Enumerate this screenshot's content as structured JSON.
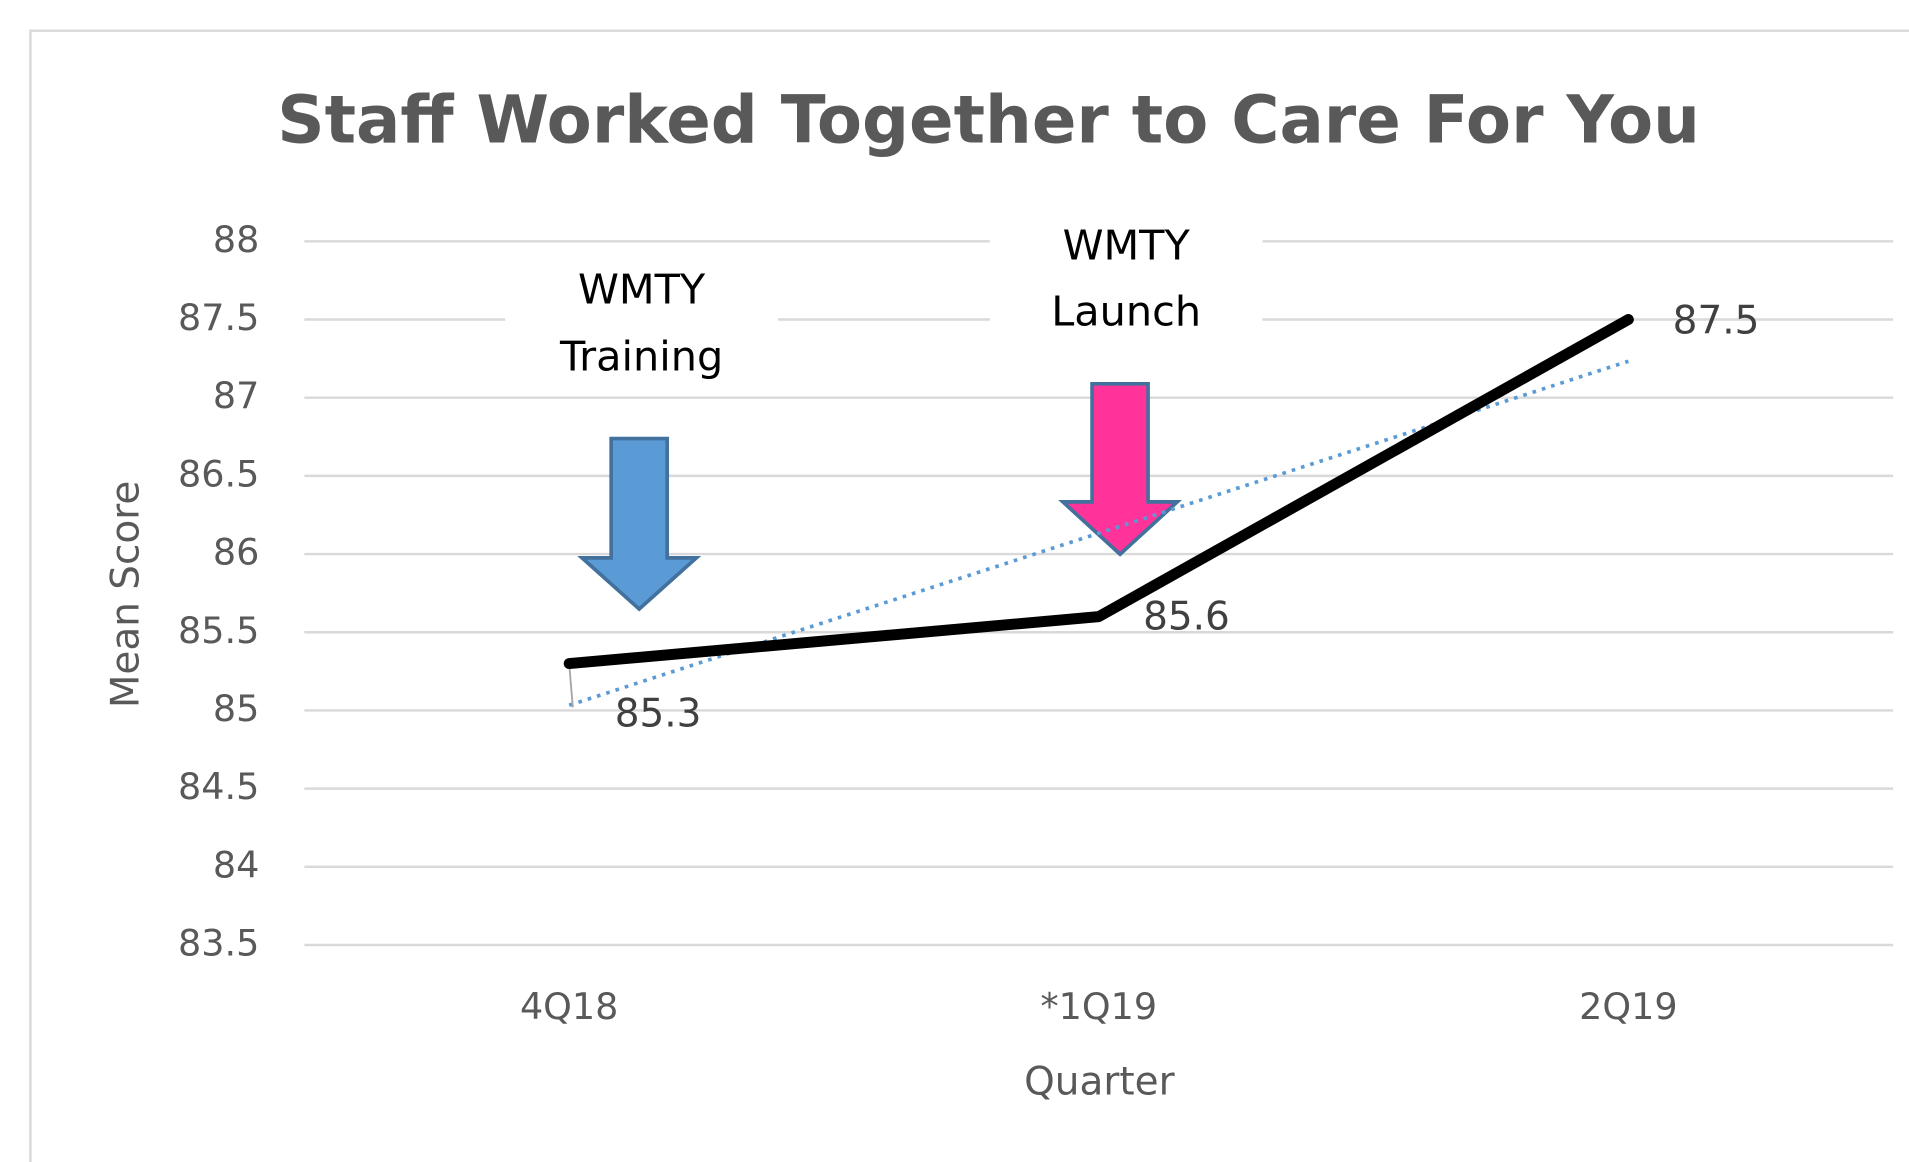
{
  "chart_data": {
    "type": "line",
    "title": "Staff Worked Together to Care For You",
    "x_label": "Quarter",
    "y_label": "Mean Score",
    "categories": [
      "4Q18",
      "*1Q19",
      "2Q19"
    ],
    "series": [
      {
        "name": "Mean Score",
        "color": "#000000",
        "values": [
          85.3,
          85.6,
          87.5
        ]
      }
    ],
    "trendline": {
      "type": "linear",
      "color": "#5b9bd5",
      "style": "dotted"
    },
    "ylim": [
      83.5,
      88
    ],
    "yticks": [
      83.5,
      84,
      84.5,
      85,
      85.5,
      86,
      86.5,
      87,
      87.5,
      88
    ],
    "grid": true,
    "annotations": [
      {
        "lines": [
          "WMTY",
          "Training"
        ],
        "color": "#5b9bd5"
      },
      {
        "lines": [
          "WMTY",
          "Launch"
        ],
        "color": "#ff3399"
      }
    ]
  }
}
